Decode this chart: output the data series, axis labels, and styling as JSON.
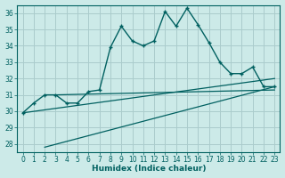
{
  "xlabel": "Humidex (Indice chaleur)",
  "ylabel": "",
  "bg_color": "#cceae8",
  "line_color": "#006060",
  "grid_color": "#aacccc",
  "xlim": [
    -0.5,
    23.5
  ],
  "ylim": [
    27.5,
    36.5
  ],
  "xticks": [
    0,
    1,
    2,
    3,
    4,
    5,
    6,
    7,
    8,
    9,
    10,
    11,
    12,
    13,
    14,
    15,
    16,
    17,
    18,
    19,
    20,
    21,
    22,
    23
  ],
  "yticks": [
    28,
    29,
    30,
    31,
    32,
    33,
    34,
    35,
    36
  ],
  "main_x": [
    0,
    1,
    2,
    3,
    4,
    5,
    6,
    7,
    8,
    9,
    10,
    11,
    12,
    13,
    14,
    15,
    16,
    17,
    18,
    19,
    20,
    21,
    22,
    23
  ],
  "main_y": [
    29.9,
    30.5,
    31.0,
    31.0,
    30.5,
    30.5,
    31.2,
    31.3,
    33.9,
    35.2,
    34.3,
    34.0,
    34.3,
    36.1,
    35.2,
    36.3,
    35.3,
    34.2,
    33.0,
    32.3,
    32.3,
    32.7,
    31.5,
    31.5
  ],
  "flat_line_x": [
    3,
    23
  ],
  "flat_line_y": [
    31.0,
    31.3
  ],
  "trend1_x": [
    0,
    23
  ],
  "trend1_y": [
    29.9,
    32.0
  ],
  "trend2_x": [
    2,
    23
  ],
  "trend2_y": [
    27.8,
    31.5
  ],
  "dot_size": 3.5
}
